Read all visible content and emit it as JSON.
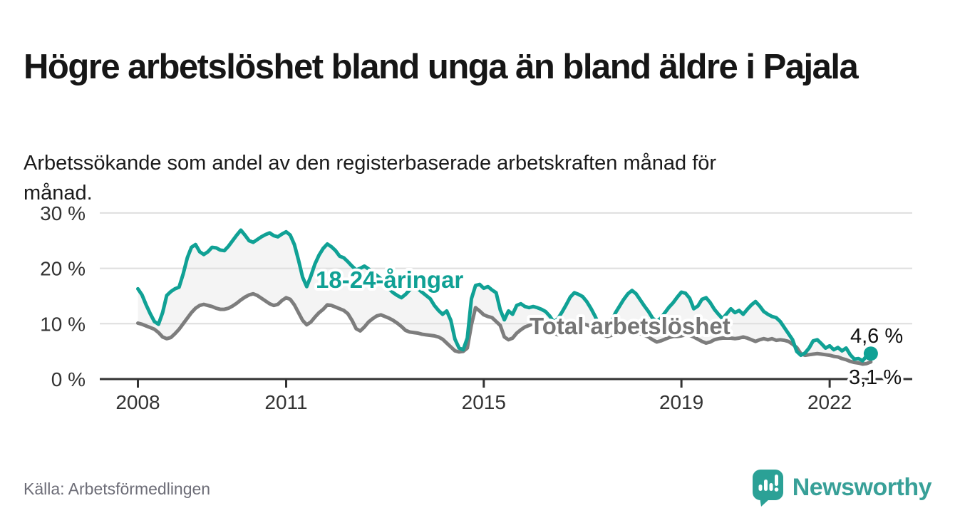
{
  "header": {
    "title": "Högre arbetslöshet bland unga än bland äldre i Pajala",
    "subtitle": "Arbetssökande som andel av den registerbaserade arbetskraften månad för månad."
  },
  "footer": {
    "source": "Källa: Arbetsförmedlingen",
    "brand": "Newsworthy",
    "brand_color": "#38a098"
  },
  "chart_data": {
    "type": "line",
    "title": "Högre arbetslöshet bland unga än bland äldre i Pajala",
    "subtitle": "Arbetssökande som andel av den registerbaserade arbetskraften månad för månad.",
    "source": "Källa: Arbetsförmedlingen",
    "unit": "%",
    "frequency": "monthly",
    "start_year": 2008,
    "start_month": 1,
    "end_year": 2022,
    "end_month": 11,
    "grid_on": true,
    "grid_color": "#dedede",
    "axis_color": "#333333",
    "area_fill_color": "#f4f4f4",
    "value_label_color": "#111111",
    "x_axis": {
      "ticks": [
        {
          "year": 2008,
          "label": "2008"
        },
        {
          "year": 2011,
          "label": "2011"
        },
        {
          "year": 2015,
          "label": "2015"
        },
        {
          "year": 2019,
          "label": "2019"
        },
        {
          "year": 2022,
          "label": "2022"
        }
      ]
    },
    "y_axis": {
      "range": [
        0,
        30
      ],
      "ticks": [
        {
          "value": 0,
          "label": "0 %"
        },
        {
          "value": 10,
          "label": "10 %"
        },
        {
          "value": 20,
          "label": "20 %"
        },
        {
          "value": 30,
          "label": "30 %"
        }
      ]
    },
    "series": [
      {
        "name": "18-24-åringar",
        "color": "#10a195",
        "end_label": "4,6 %",
        "end_value": 4.6,
        "values": [
          16.3,
          15.2,
          13.4,
          11.8,
          10.4,
          9.9,
          12.0,
          15.1,
          15.8,
          16.3,
          16.6,
          19.0,
          21.9,
          23.8,
          24.3,
          23.0,
          22.5,
          23.0,
          23.8,
          23.7,
          23.3,
          23.2,
          24.0,
          25.0,
          26.0,
          26.9,
          26.0,
          25.0,
          24.7,
          25.2,
          25.7,
          26.1,
          26.4,
          25.9,
          25.7,
          26.2,
          26.6,
          26.0,
          24.3,
          21.5,
          18.4,
          16.7,
          18.6,
          20.8,
          22.4,
          23.6,
          24.4,
          23.9,
          23.2,
          22.2,
          21.9,
          21.2,
          20.4,
          19.7,
          20.0,
          20.4,
          19.9,
          19.3,
          18.7,
          18.1,
          17.1,
          16.3,
          15.6,
          15.1,
          14.7,
          15.3,
          16.1,
          16.8,
          16.3,
          15.7,
          15.1,
          14.5,
          13.3,
          12.4,
          11.7,
          12.3,
          10.6,
          7.2,
          5.6,
          5.3,
          7.4,
          14.5,
          16.9,
          17.1,
          16.4,
          16.7,
          16.1,
          15.6,
          12.5,
          10.7,
          12.3,
          11.7,
          13.3,
          13.6,
          13.1,
          12.9,
          13.1,
          12.9,
          12.6,
          12.2,
          11.4,
          10.3,
          10.9,
          12.1,
          13.4,
          14.8,
          15.6,
          15.3,
          14.9,
          14.0,
          12.8,
          11.4,
          9.8,
          8.3,
          8.7,
          10.4,
          12.0,
          13.2,
          14.4,
          15.4,
          16.0,
          15.4,
          14.3,
          13.2,
          12.2,
          11.0,
          10.4,
          11.0,
          12.0,
          13.0,
          13.8,
          14.8,
          15.7,
          15.5,
          14.6,
          12.7,
          13.2,
          14.4,
          14.7,
          13.8,
          12.6,
          11.7,
          10.9,
          11.8,
          12.7,
          12.0,
          12.4,
          11.7,
          12.6,
          13.4,
          14.0,
          13.2,
          12.2,
          11.7,
          11.3,
          11.1,
          10.4,
          9.3,
          8.2,
          7.1,
          5.0,
          4.3,
          4.7,
          5.6,
          6.9,
          7.1,
          6.4,
          5.6,
          6.0,
          5.3,
          5.7,
          5.1,
          5.6,
          4.4,
          3.6,
          3.7,
          3.3,
          4.2,
          4.6
        ]
      },
      {
        "name": "Total arbetslöshet",
        "color": "#7d7d7d",
        "end_label": "3,1 %",
        "end_value": 3.1,
        "values": [
          10.1,
          9.9,
          9.6,
          9.3,
          9.0,
          8.4,
          7.6,
          7.3,
          7.5,
          8.2,
          9.0,
          10.0,
          11.0,
          12.0,
          12.8,
          13.3,
          13.5,
          13.3,
          13.1,
          12.8,
          12.6,
          12.6,
          12.8,
          13.2,
          13.7,
          14.3,
          14.8,
          15.2,
          15.4,
          15.1,
          14.6,
          14.1,
          13.6,
          13.3,
          13.5,
          14.2,
          14.7,
          14.4,
          13.4,
          12.0,
          10.6,
          9.8,
          10.3,
          11.2,
          12.0,
          12.6,
          13.4,
          13.3,
          13.0,
          12.7,
          12.4,
          11.8,
          10.6,
          9.1,
          8.7,
          9.4,
          10.3,
          10.9,
          11.4,
          11.6,
          11.3,
          11.0,
          10.6,
          10.1,
          9.5,
          8.8,
          8.5,
          8.4,
          8.3,
          8.1,
          8.0,
          7.9,
          7.8,
          7.6,
          7.2,
          6.5,
          5.8,
          5.1,
          4.9,
          5.0,
          5.6,
          9.8,
          12.9,
          12.3,
          11.6,
          11.3,
          11.1,
          10.4,
          9.7,
          7.6,
          7.1,
          7.4,
          8.3,
          8.9,
          9.4,
          9.7,
          10.0,
          10.1,
          10.0,
          9.8,
          9.2,
          8.3,
          8.0,
          8.4,
          9.0,
          9.6,
          9.9,
          10.0,
          10.0,
          9.8,
          9.5,
          9.0,
          8.5,
          8.0,
          7.7,
          7.9,
          8.2,
          8.5,
          8.7,
          8.9,
          8.8,
          8.5,
          8.2,
          7.9,
          7.6,
          7.1,
          6.7,
          6.9,
          7.2,
          7.5,
          7.7,
          7.7,
          7.8,
          8.0,
          7.9,
          7.6,
          7.2,
          6.8,
          6.5,
          6.7,
          7.1,
          7.3,
          7.4,
          7.4,
          7.4,
          7.3,
          7.4,
          7.6,
          7.4,
          7.1,
          6.8,
          7.1,
          7.3,
          7.1,
          7.3,
          7.0,
          7.1,
          7.0,
          6.8,
          6.3,
          5.7,
          4.6,
          4.3,
          4.4,
          4.5,
          4.6,
          4.5,
          4.4,
          4.3,
          4.1,
          4.0,
          3.7,
          3.5,
          3.2,
          3.0,
          2.9,
          2.7,
          2.8,
          3.1
        ]
      }
    ]
  }
}
